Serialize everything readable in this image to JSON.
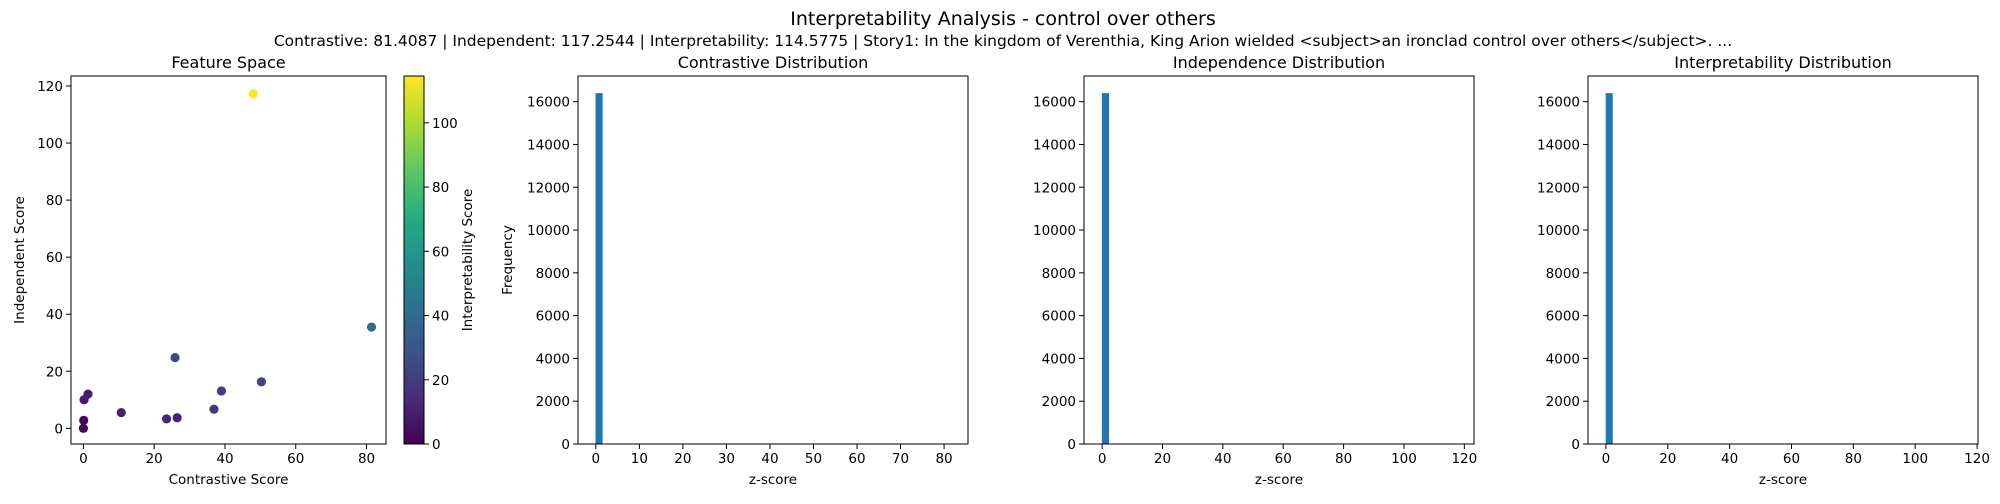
{
  "figure": {
    "title": "Interpretability Analysis - control over others",
    "subtitle": "Contrastive: 81.4087 | Independent: 117.2544 | Interpretability: 114.5775 | Story1: In the kingdom of Verenthia, King Arion wielded <subject>an ironclad control over others</subject>. ..."
  },
  "chart_data": [
    {
      "type": "scatter",
      "title": "Feature Space",
      "xlabel": "Contrastive Score",
      "ylabel": "Independent Score",
      "xlim": [
        -3.5,
        85.5
      ],
      "ylim": [
        -5.5,
        123.5
      ],
      "xticks": [
        0,
        20,
        40,
        60,
        80
      ],
      "yticks": [
        0,
        20,
        40,
        60,
        80,
        100,
        120
      ],
      "grid": false,
      "points": [
        {
          "x": 0.0,
          "y": 0.0,
          "c": 0.5
        },
        {
          "x": 0.1,
          "y": 2.8,
          "c": 1.0
        },
        {
          "x": 0.2,
          "y": 10.0,
          "c": 8.0
        },
        {
          "x": 1.3,
          "y": 12.0,
          "c": 10.0
        },
        {
          "x": 10.7,
          "y": 5.5,
          "c": 11.0
        },
        {
          "x": 23.5,
          "y": 3.3,
          "c": 12.0
        },
        {
          "x": 26.5,
          "y": 3.7,
          "c": 10.0
        },
        {
          "x": 25.9,
          "y": 24.8,
          "c": 25.0
        },
        {
          "x": 36.9,
          "y": 6.7,
          "c": 17.0
        },
        {
          "x": 39.0,
          "y": 13.1,
          "c": 21.0
        },
        {
          "x": 50.3,
          "y": 16.3,
          "c": 23.0
        },
        {
          "x": 81.4087,
          "y": 35.5,
          "c": 40.0
        },
        {
          "x": 48.0,
          "y": 117.2544,
          "c": 114.5775
        }
      ],
      "colorbar": {
        "label": "Interpretability Score",
        "range": [
          0,
          114.5775
        ],
        "ticks": [
          0,
          20,
          40,
          60,
          80,
          100
        ],
        "colormap": "viridis"
      }
    },
    {
      "type": "bar",
      "title": "Contrastive Distribution",
      "xlabel": "z-score",
      "ylabel": "Frequency",
      "xlim": [
        -4.1,
        85.5
      ],
      "ylim": [
        0,
        17200
      ],
      "xticks": [
        0,
        10,
        20,
        30,
        40,
        50,
        60,
        70,
        80
      ],
      "yticks": [
        0,
        2000,
        4000,
        6000,
        8000,
        10000,
        12000,
        14000,
        16000
      ],
      "bins": [
        {
          "x0": -0.08,
          "x1": 1.55,
          "count": 16400
        }
      ],
      "color": "#1f77b4"
    },
    {
      "type": "bar",
      "title": "Independence Distribution",
      "xlabel": "z-score",
      "ylabel": "",
      "xlim": [
        -6.0,
        123.2
      ],
      "ylim": [
        0,
        17200
      ],
      "xticks": [
        0,
        20,
        40,
        60,
        80,
        100,
        120
      ],
      "yticks": [
        0,
        2000,
        4000,
        6000,
        8000,
        10000,
        12000,
        14000,
        16000
      ],
      "bins": [
        {
          "x0": -0.08,
          "x1": 2.27,
          "count": 16400
        }
      ],
      "color": "#1f77b4"
    },
    {
      "type": "bar",
      "title": "Interpretability Distribution",
      "xlabel": "z-score",
      "ylabel": "",
      "xlim": [
        -5.8,
        120.3
      ],
      "ylim": [
        0,
        17200
      ],
      "xticks": [
        0,
        20,
        40,
        60,
        80,
        100,
        120
      ],
      "yticks": [
        0,
        2000,
        4000,
        6000,
        8000,
        10000,
        12000,
        14000,
        16000
      ],
      "bins": [
        {
          "x0": -0.08,
          "x1": 2.21,
          "count": 16400
        }
      ],
      "color": "#1f77b4"
    }
  ]
}
